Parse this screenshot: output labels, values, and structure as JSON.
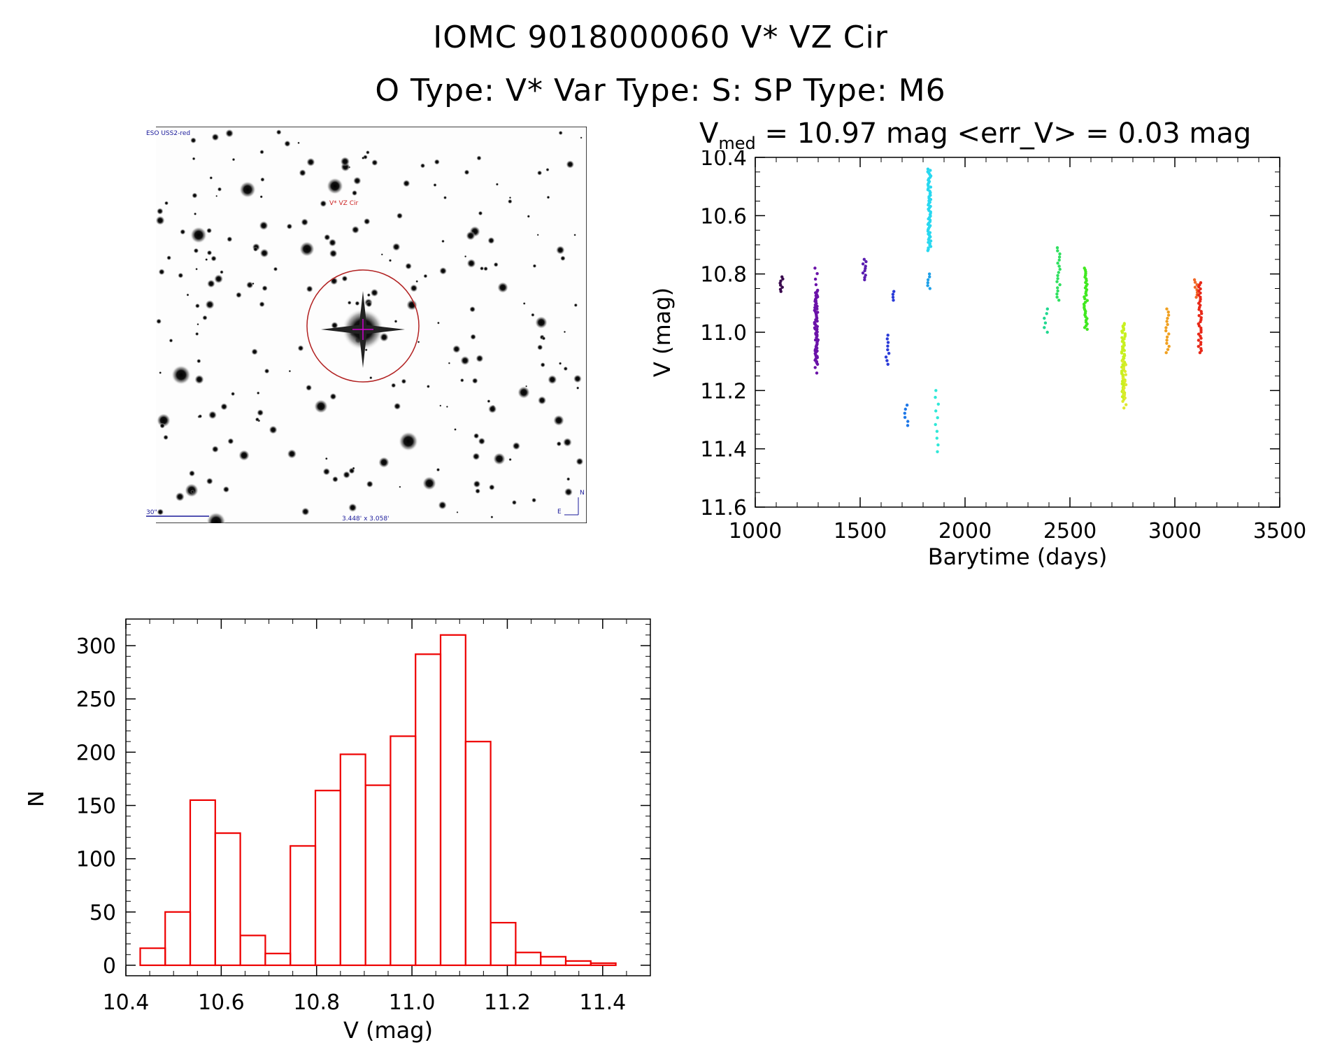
{
  "title": {
    "line1": "IOMC 9018000060    V* VZ Cir",
    "line2": "O Type: V*  Var Type: S:  SP Type: M6"
  },
  "stats": {
    "v_label": "V",
    "v_sub": "med",
    "text": " = 10.97 mag <err_V> = 0.03 mag"
  },
  "finder": {
    "survey": "ESO USS2-red",
    "target_label": "V* VZ Cir",
    "scale_label": "30\"",
    "fov_label": "3.448' x 3.058'",
    "compass_n": "N",
    "compass_e": "E"
  },
  "chart_data": [
    {
      "type": "scatter",
      "xlabel": "Barytime (days)",
      "ylabel": "V (mag)",
      "xlim": [
        1000,
        3500
      ],
      "ylim": [
        11.6,
        10.4
      ],
      "y_inverted": true,
      "xticks": [
        1000,
        1500,
        2000,
        2500,
        3000,
        3500
      ],
      "yticks": [
        10.4,
        10.6,
        10.8,
        11.0,
        11.2,
        11.4,
        11.6
      ],
      "xtick_labels": [
        "1000",
        "1500",
        "2000",
        "2500",
        "3000",
        "3500"
      ],
      "ytick_labels": [
        "10.4",
        "10.6",
        "10.8",
        "11.0",
        "11.2",
        "11.4",
        "11.6"
      ],
      "point_groups": [
        {
          "x": 1125,
          "y_min": 10.81,
          "y_max": 10.86,
          "n": 8,
          "color": "#3a0a4e"
        },
        {
          "x": 1290,
          "y_min": 10.86,
          "y_max": 11.11,
          "n": 55,
          "color": "#6a12a8"
        },
        {
          "x": 1292,
          "y_min": 10.78,
          "y_max": 11.14,
          "n": 20,
          "color": "#6a12a8"
        },
        {
          "x": 1520,
          "y_min": 10.75,
          "y_max": 10.82,
          "n": 10,
          "color": "#5a1db0"
        },
        {
          "x": 1630,
          "y_min": 11.01,
          "y_max": 11.11,
          "n": 9,
          "color": "#2a3ad8"
        },
        {
          "x": 1660,
          "y_min": 10.86,
          "y_max": 10.89,
          "n": 4,
          "color": "#2a3ad8"
        },
        {
          "x": 1720,
          "y_min": 11.25,
          "y_max": 11.32,
          "n": 6,
          "color": "#1e78e8"
        },
        {
          "x": 1825,
          "y_min": 10.8,
          "y_max": 10.85,
          "n": 6,
          "color": "#1ea0e8"
        },
        {
          "x": 1830,
          "y_min": 10.44,
          "y_max": 10.72,
          "n": 60,
          "color": "#28d8f0"
        },
        {
          "x": 1865,
          "y_min": 11.2,
          "y_max": 11.41,
          "n": 10,
          "color": "#30e8d8"
        },
        {
          "x": 2385,
          "y_min": 10.92,
          "y_max": 11.0,
          "n": 6,
          "color": "#20d890"
        },
        {
          "x": 2445,
          "y_min": 10.71,
          "y_max": 10.89,
          "n": 18,
          "color": "#30e060"
        },
        {
          "x": 2575,
          "y_min": 10.78,
          "y_max": 10.99,
          "n": 35,
          "color": "#40e820"
        },
        {
          "x": 2755,
          "y_min": 10.97,
          "y_max": 11.23,
          "n": 60,
          "color": "#c8f020"
        },
        {
          "x": 2760,
          "y_min": 11.1,
          "y_max": 11.26,
          "n": 15,
          "color": "#e0e830"
        },
        {
          "x": 2965,
          "y_min": 10.92,
          "y_max": 11.07,
          "n": 15,
          "color": "#f0a020"
        },
        {
          "x": 3100,
          "y_min": 10.82,
          "y_max": 10.88,
          "n": 8,
          "color": "#f06828"
        },
        {
          "x": 3120,
          "y_min": 10.83,
          "y_max": 11.07,
          "n": 35,
          "color": "#e82818"
        }
      ]
    },
    {
      "type": "bar",
      "histogram": true,
      "xlabel": "V (mag)",
      "ylabel": "N",
      "xlim": [
        10.4,
        11.5
      ],
      "ylim": [
        0,
        325
      ],
      "xticks": [
        10.4,
        10.6,
        10.8,
        11.0,
        11.2,
        11.4
      ],
      "yticks": [
        0,
        50,
        100,
        150,
        200,
        250,
        300
      ],
      "xtick_labels": [
        "10.4",
        "10.6",
        "10.8",
        "11.0",
        "11.2",
        "11.4"
      ],
      "ytick_labels": [
        "0",
        "50",
        "100",
        "150",
        "200",
        "250",
        "300"
      ],
      "bin_start": 10.43,
      "bin_width": 0.0525,
      "values": [
        16,
        50,
        155,
        124,
        28,
        11,
        112,
        164,
        198,
        169,
        215,
        292,
        310,
        210,
        40,
        12,
        8,
        4,
        2
      ],
      "color": "#ee0000"
    }
  ]
}
